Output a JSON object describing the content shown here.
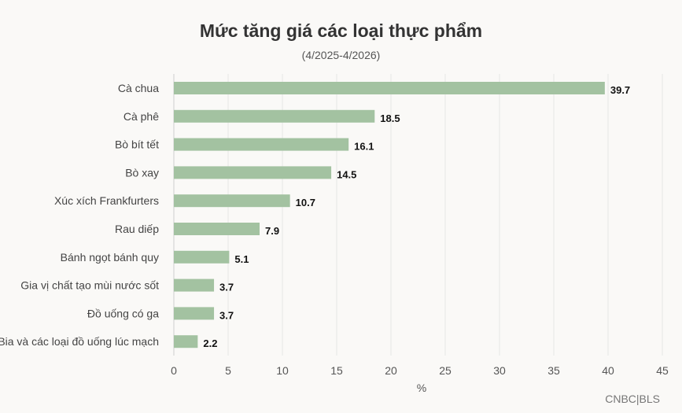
{
  "chart_data": {
    "type": "bar",
    "orientation": "horizontal",
    "title": "Mức tăng giá các loại thực phẩm",
    "subtitle": "(4/2025-4/2026)",
    "xlabel": "%",
    "ylabel": "",
    "source": "CNBC|BLS",
    "categories": [
      "Cà chua",
      "Cà phê",
      "Bò bít tết",
      "Bò xay",
      "Xúc xích Frankfurters",
      "Rau diếp",
      "Bánh ngọt bánh quy",
      "Gia vị chất tạo mùi nước sốt",
      "Đồ uống có ga",
      "Bia và các loại đồ uống lúc mạch"
    ],
    "values": [
      39.7,
      18.5,
      16.1,
      14.5,
      10.7,
      7.9,
      5.1,
      3.7,
      3.7,
      2.2
    ],
    "value_labels": [
      "39.7",
      "18.5",
      "16.1",
      "14.5",
      "10.7",
      "7.9",
      "5.1",
      "3.7",
      "3.7",
      "2.2"
    ],
    "xlim": [
      0,
      45
    ],
    "xticks": [
      0,
      5,
      10,
      15,
      20,
      25,
      30,
      35,
      40,
      45
    ],
    "grid": true,
    "legend": "none",
    "colors": {
      "bar": "#a3c2a1",
      "grid": "#e6e6e6",
      "background": "#faf9f7"
    }
  }
}
